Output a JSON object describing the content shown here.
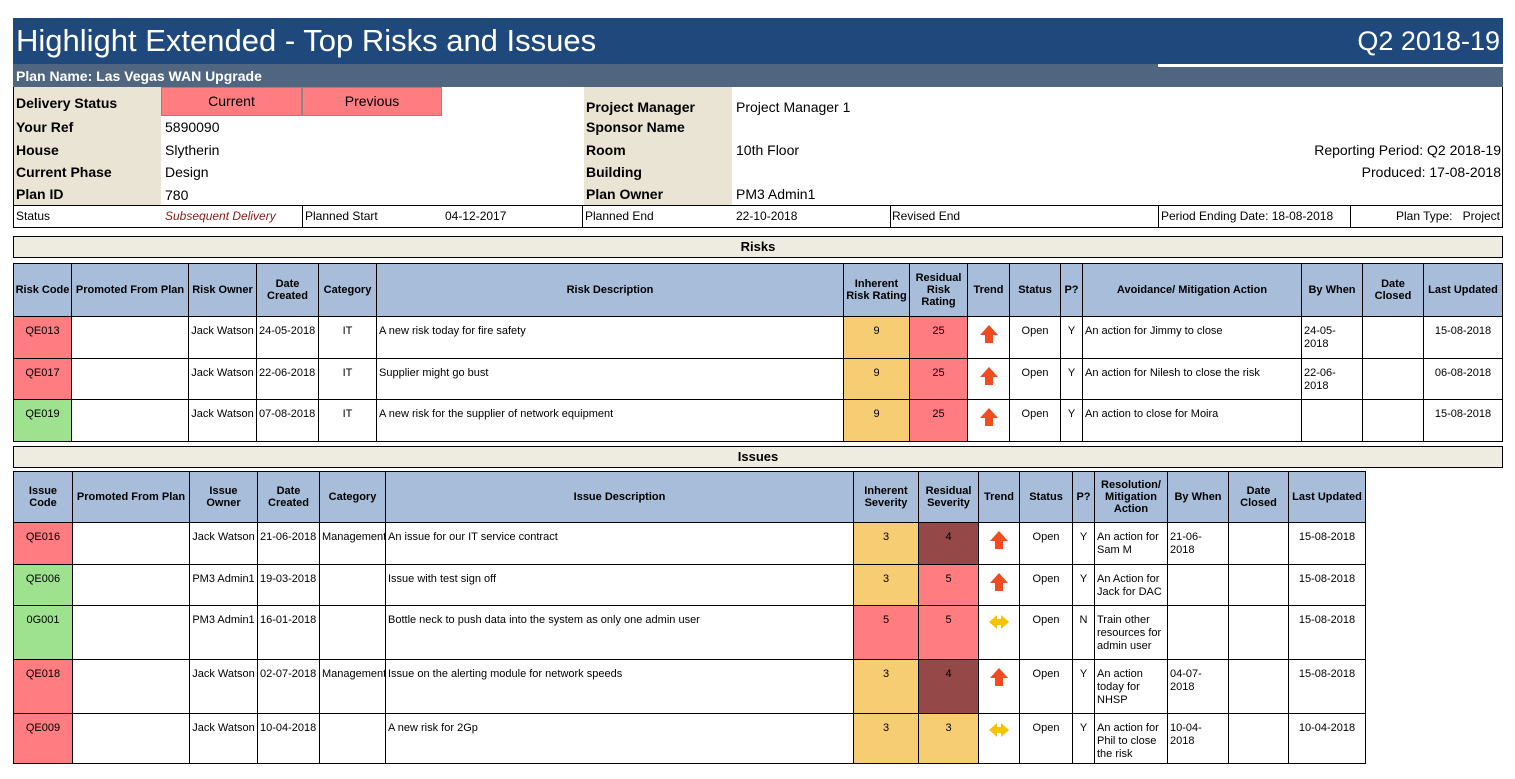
{
  "header": {
    "title": "Highlight Extended - Top Risks and Issues",
    "period": "Q2 2018-19"
  },
  "plan_name": "Plan Name: Las Vegas WAN Upgrade",
  "info": {
    "delivery_status_label": "Delivery Status",
    "current_label": "Current",
    "previous_label": "Previous",
    "your_ref_label": "Your Ref",
    "your_ref": "5890090",
    "house_label": "House",
    "house": "Slytherin",
    "phase_label": "Current Phase",
    "phase": "Design",
    "plan_id_label": "Plan ID",
    "plan_id": "780",
    "pm_label": "Project Manager",
    "pm": "Project Manager 1",
    "sponsor_label": "Sponsor Name",
    "sponsor": "",
    "room_label": "Room",
    "room": "10th Floor",
    "building_label": "Building",
    "building": "",
    "owner_label": "Plan Owner",
    "owner": "PM3 Admin1",
    "reporting_period": "Reporting Period: Q2 2018-19",
    "produced": "Produced: 17-08-2018"
  },
  "status_row": {
    "status_label": "Status",
    "status": "Subsequent Delivery",
    "planned_start_label": "Planned Start",
    "planned_start": "04-12-2017",
    "planned_end_label": "Planned End",
    "planned_end": "22-10-2018",
    "revised_end_label": "Revised End",
    "period_ending": "Period Ending Date: 18-08-2018",
    "plan_type_label": "Plan Type:",
    "plan_type": "Project"
  },
  "risks": {
    "section_title": "Risks",
    "headers": [
      "Risk Code",
      "Promoted From Plan",
      "Risk Owner",
      "Date Created",
      "Category",
      "Risk Description",
      "Inherent Risk Rating",
      "Residual Risk Rating",
      "Trend",
      "Status",
      "P?",
      "Avoidance/ Mitigation Action",
      "By When",
      "Date Closed",
      "Last Updated"
    ],
    "rows": [
      {
        "code": "QE013",
        "code_color": "red",
        "promoted": "",
        "owner": "Jack Watson",
        "created": "24-05-2018",
        "category": "IT",
        "desc": "A new risk today for fire safety",
        "inherent": "9",
        "inherent_color": "amber",
        "residual": "25",
        "residual_color": "red",
        "trend": "up",
        "status": "Open",
        "p": "Y",
        "action": "An action for Jimmy to close",
        "by_when": "24-05-2018",
        "closed": "",
        "updated": "15-08-2018"
      },
      {
        "code": "QE017",
        "code_color": "red",
        "promoted": "",
        "owner": "Jack Watson",
        "created": "22-06-2018",
        "category": "IT",
        "desc": "Supplier might go bust",
        "inherent": "9",
        "inherent_color": "amber",
        "residual": "25",
        "residual_color": "red",
        "trend": "up",
        "status": "Open",
        "p": "Y",
        "action": "An action for Nilesh to close the risk",
        "by_when": "22-06-2018",
        "closed": "",
        "updated": "06-08-2018"
      },
      {
        "code": "QE019",
        "code_color": "green",
        "promoted": "",
        "owner": "Jack Watson",
        "created": "07-08-2018",
        "category": "IT",
        "desc": "A new risk for the supplier of network equipment",
        "inherent": "9",
        "inherent_color": "amber",
        "residual": "25",
        "residual_color": "red",
        "trend": "up",
        "status": "Open",
        "p": "Y",
        "action": "An action to close for Moira",
        "by_when": "",
        "closed": "",
        "updated": "15-08-2018"
      }
    ]
  },
  "issues": {
    "section_title": "Issues",
    "headers": [
      "Issue Code",
      "Promoted From Plan",
      "Issue Owner",
      "Date Created",
      "Category",
      "Issue Description",
      "Inherent Severity",
      "Residual Severity",
      "Trend",
      "Status",
      "P?",
      "Resolution/ Mitigation Action",
      "By When",
      "Date Closed",
      "Last Updated"
    ],
    "rows": [
      {
        "code": "QE016",
        "code_color": "red",
        "promoted": "",
        "owner": "Jack  Watson",
        "created": "21-06-2018",
        "category": "Management",
        "desc": "An issue for our IT service contract",
        "inherent": "3",
        "inherent_color": "amber",
        "residual": "4",
        "residual_color": "maroon",
        "trend": "up",
        "status": "Open",
        "p": "Y",
        "action": "An action for Sam M",
        "by_when": "21-06-2018",
        "closed": "",
        "updated": "15-08-2018"
      },
      {
        "code": "QE006",
        "code_color": "green",
        "promoted": "",
        "owner": "PM3 Admin1",
        "created": "19-03-2018",
        "category": "",
        "desc": "Issue with test sign off",
        "inherent": "3",
        "inherent_color": "amber",
        "residual": "5",
        "residual_color": "red",
        "trend": "up",
        "status": "Open",
        "p": "Y",
        "action": "An Action for Jack for DAC",
        "by_when": "",
        "closed": "",
        "updated": "15-08-2018"
      },
      {
        "code": "0G001",
        "code_color": "green",
        "promoted": "",
        "owner": "PM3 Admin1",
        "created": "16-01-2018",
        "category": "",
        "desc": "Bottle neck to push data into the system as only one admin user",
        "inherent": "5",
        "inherent_color": "red",
        "residual": "5",
        "residual_color": "red",
        "trend": "flat",
        "status": "Open",
        "p": "N",
        "action": "Train other resources for admin user",
        "by_when": "",
        "closed": "",
        "updated": "15-08-2018"
      },
      {
        "code": "QE018",
        "code_color": "red",
        "promoted": "",
        "owner": "Jack  Watson",
        "created": "02-07-2018",
        "category": "Management",
        "desc": "Issue on the alerting module for network speeds",
        "inherent": "3",
        "inherent_color": "amber",
        "residual": "4",
        "residual_color": "maroon",
        "trend": "up",
        "status": "Open",
        "p": "Y",
        "action": "An action today for NHSP",
        "by_when": "04-07-2018",
        "closed": "",
        "updated": "15-08-2018"
      },
      {
        "code": "QE009",
        "code_color": "red",
        "promoted": "",
        "owner": "Jack  Watson",
        "created": "10-04-2018",
        "category": "",
        "desc": "A new risk for 2Gp",
        "inherent": "3",
        "inherent_color": "amber",
        "residual": "3",
        "residual_color": "amber",
        "trend": "flat",
        "status": "Open",
        "p": "Y",
        "action": "An action for Phil to close the risk",
        "by_when": "10-04-2018",
        "closed": "",
        "updated": "10-04-2018"
      }
    ]
  }
}
